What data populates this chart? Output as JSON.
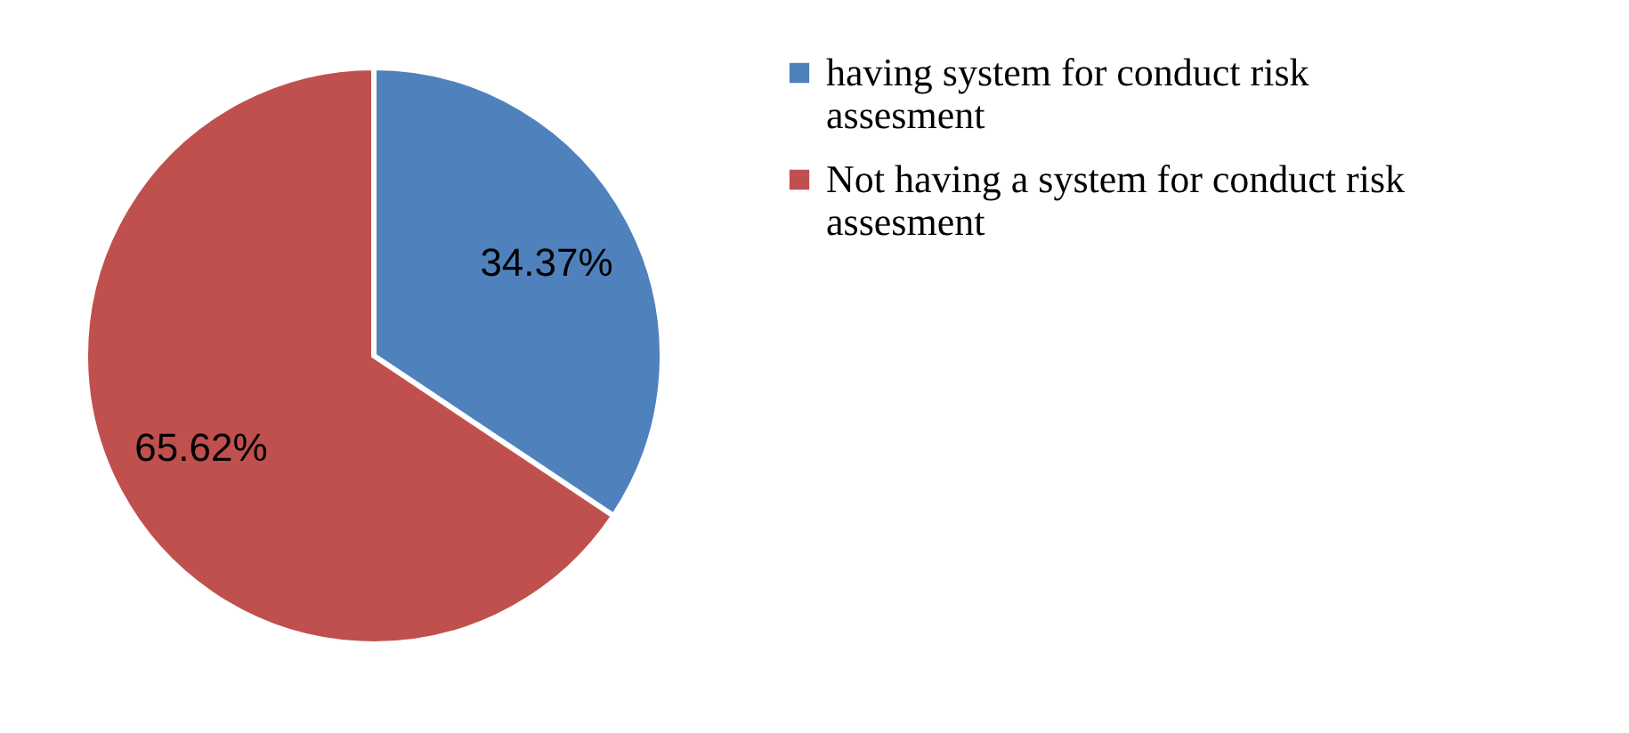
{
  "chart_data": {
    "type": "pie",
    "categories": [
      "having system for conduct risk assesment",
      "Not having a system for conduct risk assesment"
    ],
    "values": [
      34.37,
      65.62
    ],
    "colors": [
      "#4f81bd",
      "#c0504d"
    ],
    "value_labels": [
      "34.37%",
      "65.62%"
    ],
    "legend": "right"
  }
}
